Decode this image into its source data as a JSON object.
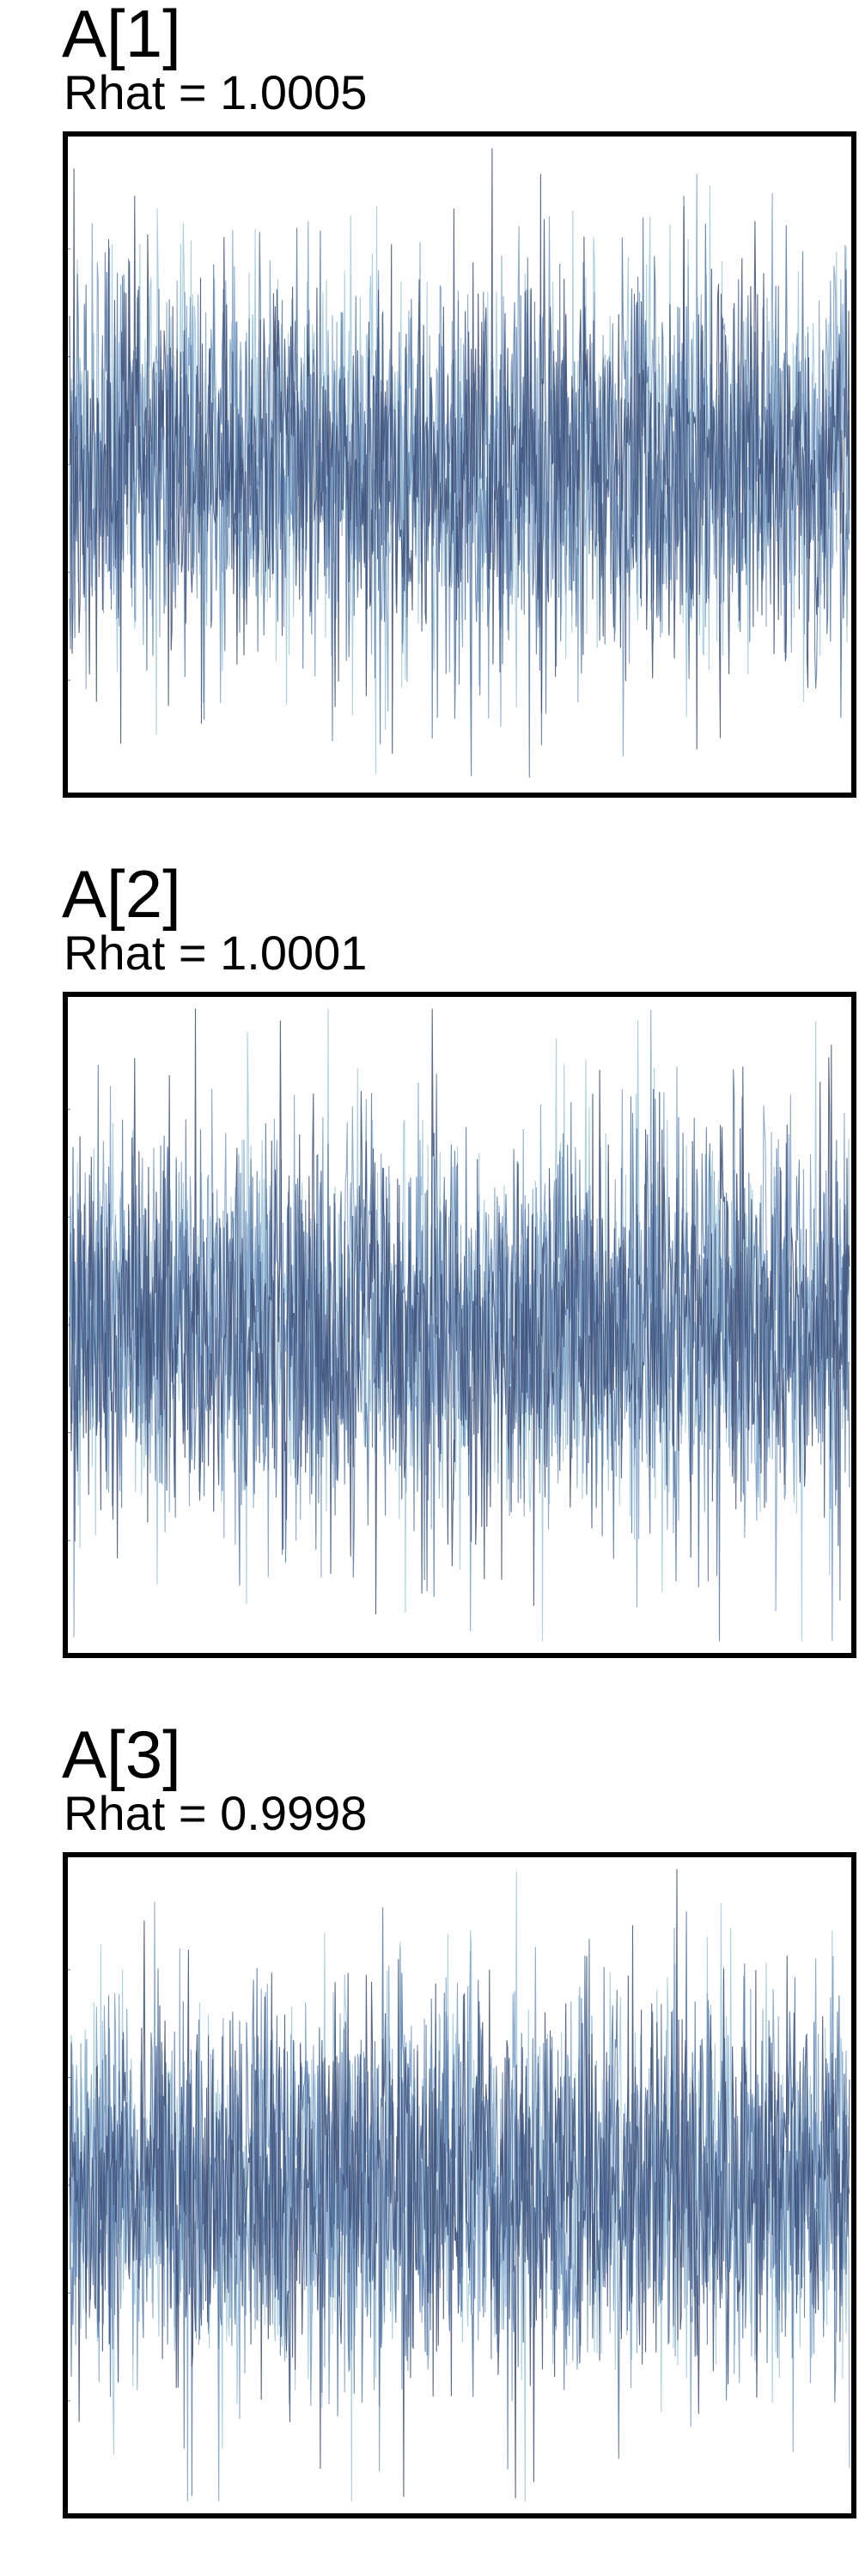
{
  "chart_data": [
    {
      "type": "line",
      "title": "A[1]",
      "subtitle": "Rhat = 1.0005",
      "xlabel": "",
      "ylabel": "",
      "grid": false,
      "ylim": [
        -4.6,
        4.6
      ],
      "series_colors": [
        "#9fc8d8",
        "#7c9fc8",
        "#5577a4",
        "#3d4e76"
      ]
    },
    {
      "type": "line",
      "title": "A[2]",
      "subtitle": "Rhat = 1.0001",
      "xlabel": "",
      "ylabel": "",
      "grid": false,
      "ylim": [
        -4.6,
        4.6
      ],
      "series_colors": [
        "#9fc8d8",
        "#7c9fc8",
        "#5577a4",
        "#3d4e76"
      ]
    },
    {
      "type": "line",
      "title": "A[3]",
      "subtitle": "Rhat = 0.9998",
      "xlabel": "",
      "ylabel": "",
      "grid": false,
      "ylim": [
        -4.6,
        4.6
      ],
      "series_colors": [
        "#9fc8d8",
        "#7c9fc8",
        "#5577a4",
        "#3d4e76"
      ]
    }
  ]
}
